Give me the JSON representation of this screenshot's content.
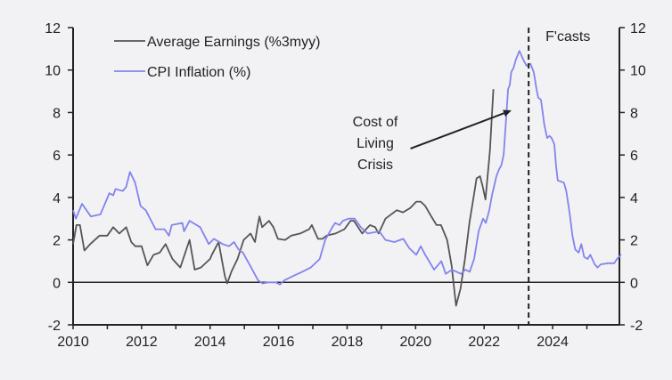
{
  "chart_data": {
    "type": "line",
    "title": "",
    "xlabel": "",
    "ylabel": "",
    "xlim": [
      2010,
      2025.95
    ],
    "ylim": [
      -2,
      12
    ],
    "y_ticks": [
      -2,
      0,
      2,
      4,
      6,
      8,
      10,
      12
    ],
    "y_tick_labels": [
      "-2",
      "0",
      "2",
      "4",
      "6",
      "8",
      "10",
      "12"
    ],
    "x_ticks": [
      2010,
      2011,
      2012,
      2013,
      2014,
      2015,
      2016,
      2017,
      2018,
      2019,
      2020,
      2021,
      2022,
      2023,
      2024,
      2025
    ],
    "x_tick_labels": [
      {
        "year": 2010,
        "label": "2010"
      },
      {
        "year": 2012,
        "label": "2012"
      },
      {
        "year": 2014,
        "label": "2014"
      },
      {
        "year": 2016,
        "label": "2016"
      },
      {
        "year": 2018,
        "label": "2018"
      },
      {
        "year": 2020,
        "label": "2020"
      },
      {
        "year": 2022,
        "label": "2022"
      },
      {
        "year": 2024,
        "label": "2024"
      }
    ],
    "axes": "left and right y-axes mirrored",
    "grid": false,
    "zero_line": true,
    "legend": {
      "placement": "top-left",
      "entries": [
        {
          "label": "Average Earnings (%3myy)",
          "color": "#555555"
        },
        {
          "label": "CPI Inflation (%)",
          "color": "#8383ee"
        }
      ]
    },
    "forecast_marker": {
      "x": 2023.3,
      "label": "F'casts",
      "style": "dashed"
    },
    "annotation": {
      "lines": [
        "Cost of",
        "Living",
        "Crisis"
      ],
      "arrow_from": [
        2019.85,
        6.3
      ],
      "arrow_to": [
        2022.8,
        8.1
      ]
    },
    "series": [
      {
        "name": "Average Earnings (%3myy)",
        "color": "#555555",
        "points": [
          [
            2010.0,
            1.8
          ],
          [
            2010.1,
            2.7
          ],
          [
            2010.2,
            2.7
          ],
          [
            2010.33,
            1.5
          ],
          [
            2010.5,
            1.8
          ],
          [
            2010.77,
            2.2
          ],
          [
            2011.0,
            2.2
          ],
          [
            2011.17,
            2.6
          ],
          [
            2011.35,
            2.3
          ],
          [
            2011.55,
            2.6
          ],
          [
            2011.7,
            1.9
          ],
          [
            2011.82,
            1.7
          ],
          [
            2012.0,
            1.7
          ],
          [
            2012.17,
            0.8
          ],
          [
            2012.35,
            1.3
          ],
          [
            2012.53,
            1.4
          ],
          [
            2012.7,
            1.8
          ],
          [
            2012.9,
            1.1
          ],
          [
            2013.13,
            0.7
          ],
          [
            2013.4,
            2.0
          ],
          [
            2013.55,
            0.6
          ],
          [
            2013.73,
            0.7
          ],
          [
            2014.0,
            1.1
          ],
          [
            2014.05,
            1.3
          ],
          [
            2014.15,
            1.6
          ],
          [
            2014.25,
            1.9
          ],
          [
            2014.35,
            1.0
          ],
          [
            2014.43,
            0.3
          ],
          [
            2014.5,
            -0.05
          ],
          [
            2014.62,
            0.5
          ],
          [
            2014.8,
            1.1
          ],
          [
            2014.98,
            2.0
          ],
          [
            2015.18,
            2.3
          ],
          [
            2015.31,
            1.9
          ],
          [
            2015.38,
            2.6
          ],
          [
            2015.44,
            3.1
          ],
          [
            2015.52,
            2.6
          ],
          [
            2015.72,
            2.9
          ],
          [
            2015.85,
            2.6
          ],
          [
            2015.98,
            2.05
          ],
          [
            2016.19,
            2.0
          ],
          [
            2016.37,
            2.2
          ],
          [
            2016.63,
            2.3
          ],
          [
            2016.89,
            2.5
          ],
          [
            2016.97,
            2.7
          ],
          [
            2017.15,
            2.05
          ],
          [
            2017.28,
            2.05
          ],
          [
            2017.4,
            2.2
          ],
          [
            2017.66,
            2.3
          ],
          [
            2017.79,
            2.4
          ],
          [
            2017.92,
            2.5
          ],
          [
            2018.1,
            2.9
          ],
          [
            2018.2,
            2.9
          ],
          [
            2018.36,
            2.5
          ],
          [
            2018.44,
            2.3
          ],
          [
            2018.55,
            2.5
          ],
          [
            2018.67,
            2.7
          ],
          [
            2018.82,
            2.6
          ],
          [
            2018.92,
            2.3
          ],
          [
            2019.12,
            3.0
          ],
          [
            2019.45,
            3.4
          ],
          [
            2019.63,
            3.3
          ],
          [
            2019.84,
            3.5
          ],
          [
            2020.02,
            3.8
          ],
          [
            2020.15,
            3.8
          ],
          [
            2020.28,
            3.6
          ],
          [
            2020.46,
            3.1
          ],
          [
            2020.61,
            2.7
          ],
          [
            2020.74,
            2.7
          ],
          [
            2020.92,
            2.0
          ],
          [
            2021.05,
            0.8
          ],
          [
            2021.18,
            -1.1
          ],
          [
            2021.31,
            -0.3
          ],
          [
            2021.44,
            1.1
          ],
          [
            2021.57,
            2.8
          ],
          [
            2021.7,
            4.1
          ],
          [
            2021.78,
            4.9
          ],
          [
            2021.88,
            5.0
          ],
          [
            2021.96,
            4.5
          ],
          [
            2022.04,
            3.9
          ],
          [
            2022.17,
            6.2
          ],
          [
            2022.27,
            9.1
          ]
        ]
      },
      {
        "name": "CPI Inflation (%)",
        "color": "#8383ee",
        "points": [
          [
            2010.0,
            3.4
          ],
          [
            2010.08,
            3.0
          ],
          [
            2010.26,
            3.7
          ],
          [
            2010.52,
            3.1
          ],
          [
            2010.8,
            3.2
          ],
          [
            2011.06,
            4.2
          ],
          [
            2011.17,
            4.1
          ],
          [
            2011.24,
            4.4
          ],
          [
            2011.45,
            4.3
          ],
          [
            2011.55,
            4.5
          ],
          [
            2011.66,
            5.2
          ],
          [
            2011.81,
            4.7
          ],
          [
            2011.97,
            3.6
          ],
          [
            2012.12,
            3.4
          ],
          [
            2012.41,
            2.5
          ],
          [
            2012.67,
            2.5
          ],
          [
            2012.8,
            2.2
          ],
          [
            2012.88,
            2.7
          ],
          [
            2013.19,
            2.8
          ],
          [
            2013.24,
            2.4
          ],
          [
            2013.4,
            2.9
          ],
          [
            2013.71,
            2.6
          ],
          [
            2013.96,
            1.8
          ],
          [
            2014.11,
            2.05
          ],
          [
            2014.37,
            1.8
          ],
          [
            2014.55,
            1.7
          ],
          [
            2014.7,
            1.9
          ],
          [
            2014.83,
            1.55
          ],
          [
            2014.96,
            1.4
          ],
          [
            2015.2,
            0.7
          ],
          [
            2015.4,
            0.1
          ],
          [
            2015.53,
            -0.05
          ],
          [
            2015.71,
            0.0
          ],
          [
            2015.92,
            0.0
          ],
          [
            2016.04,
            -0.1
          ],
          [
            2016.17,
            0.1
          ],
          [
            2016.43,
            0.3
          ],
          [
            2016.69,
            0.5
          ],
          [
            2016.94,
            0.7
          ],
          [
            2017.2,
            1.1
          ],
          [
            2017.36,
            2.0
          ],
          [
            2017.57,
            2.6
          ],
          [
            2017.65,
            2.8
          ],
          [
            2017.78,
            2.7
          ],
          [
            2017.88,
            2.9
          ],
          [
            2018.04,
            3.0
          ],
          [
            2018.22,
            3.0
          ],
          [
            2018.4,
            2.6
          ],
          [
            2018.6,
            2.3
          ],
          [
            2018.94,
            2.4
          ],
          [
            2019.12,
            2.0
          ],
          [
            2019.38,
            1.9
          ],
          [
            2019.64,
            2.05
          ],
          [
            2019.82,
            1.6
          ],
          [
            2020.02,
            1.3
          ],
          [
            2020.15,
            1.7
          ],
          [
            2020.28,
            1.3
          ],
          [
            2020.54,
            0.6
          ],
          [
            2020.75,
            1.0
          ],
          [
            2020.88,
            0.4
          ],
          [
            2021.06,
            0.6
          ],
          [
            2021.32,
            0.4
          ],
          [
            2021.45,
            0.6
          ],
          [
            2021.58,
            0.5
          ],
          [
            2021.71,
            1.1
          ],
          [
            2021.84,
            2.4
          ],
          [
            2021.97,
            3.0
          ],
          [
            2022.05,
            2.8
          ],
          [
            2022.15,
            3.4
          ],
          [
            2022.23,
            4.1
          ],
          [
            2022.36,
            5.0
          ],
          [
            2022.43,
            5.3
          ],
          [
            2022.5,
            5.5
          ],
          [
            2022.57,
            6.0
          ],
          [
            2022.63,
            7.4
          ],
          [
            2022.7,
            9.1
          ],
          [
            2022.75,
            9.3
          ],
          [
            2022.79,
            9.9
          ],
          [
            2022.86,
            10.1
          ],
          [
            2022.93,
            10.5
          ],
          [
            2023.03,
            10.9
          ],
          [
            2023.14,
            10.5
          ],
          [
            2023.24,
            10.2
          ],
          [
            2023.35,
            10.3
          ],
          [
            2023.45,
            9.9
          ],
          [
            2023.53,
            9.1
          ],
          [
            2023.58,
            8.7
          ],
          [
            2023.66,
            8.6
          ],
          [
            2023.71,
            8.0
          ],
          [
            2023.76,
            7.4
          ],
          [
            2023.84,
            6.8
          ],
          [
            2023.91,
            6.9
          ],
          [
            2023.97,
            6.8
          ],
          [
            2024.05,
            6.5
          ],
          [
            2024.1,
            5.5
          ],
          [
            2024.15,
            4.8
          ],
          [
            2024.33,
            4.7
          ],
          [
            2024.4,
            4.3
          ],
          [
            2024.5,
            3.2
          ],
          [
            2024.58,
            2.2
          ],
          [
            2024.66,
            1.55
          ],
          [
            2024.76,
            1.4
          ],
          [
            2024.84,
            1.8
          ],
          [
            2024.92,
            1.2
          ],
          [
            2025.02,
            1.1
          ],
          [
            2025.1,
            1.3
          ],
          [
            2025.23,
            0.85
          ],
          [
            2025.31,
            0.7
          ],
          [
            2025.41,
            0.85
          ],
          [
            2025.62,
            0.9
          ],
          [
            2025.8,
            0.9
          ],
          [
            2025.88,
            1.1
          ],
          [
            2026.0,
            1.3
          ]
        ]
      }
    ]
  }
}
